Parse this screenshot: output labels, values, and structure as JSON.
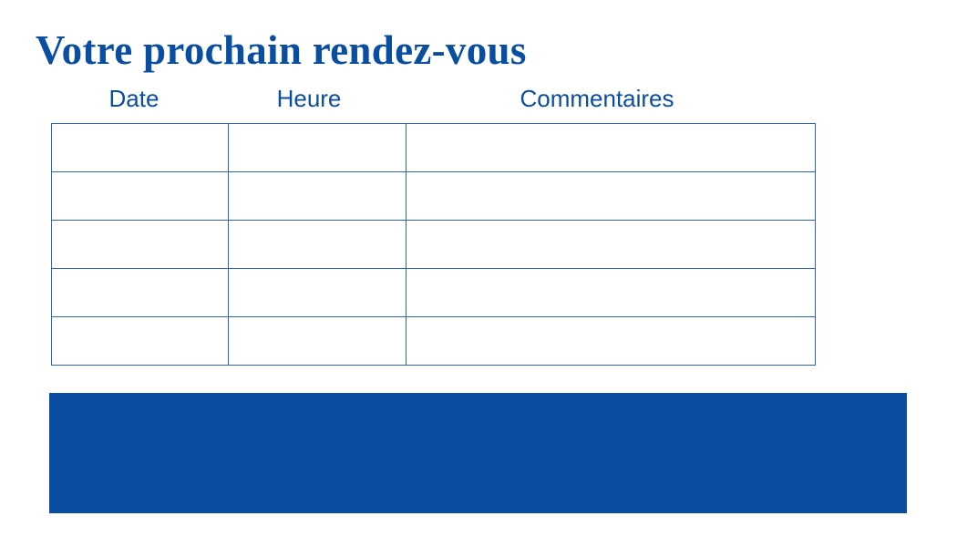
{
  "title": "Votre prochain rendez-vous",
  "table": {
    "headers": [
      "Date",
      "Heure",
      "Commentaires"
    ],
    "rows": [
      [
        "",
        "",
        ""
      ],
      [
        "",
        "",
        ""
      ],
      [
        "",
        "",
        ""
      ],
      [
        "",
        "",
        ""
      ],
      [
        "",
        "",
        ""
      ]
    ]
  },
  "colors": {
    "brand": "#0a4ea2",
    "grid": "#2f64b0"
  }
}
